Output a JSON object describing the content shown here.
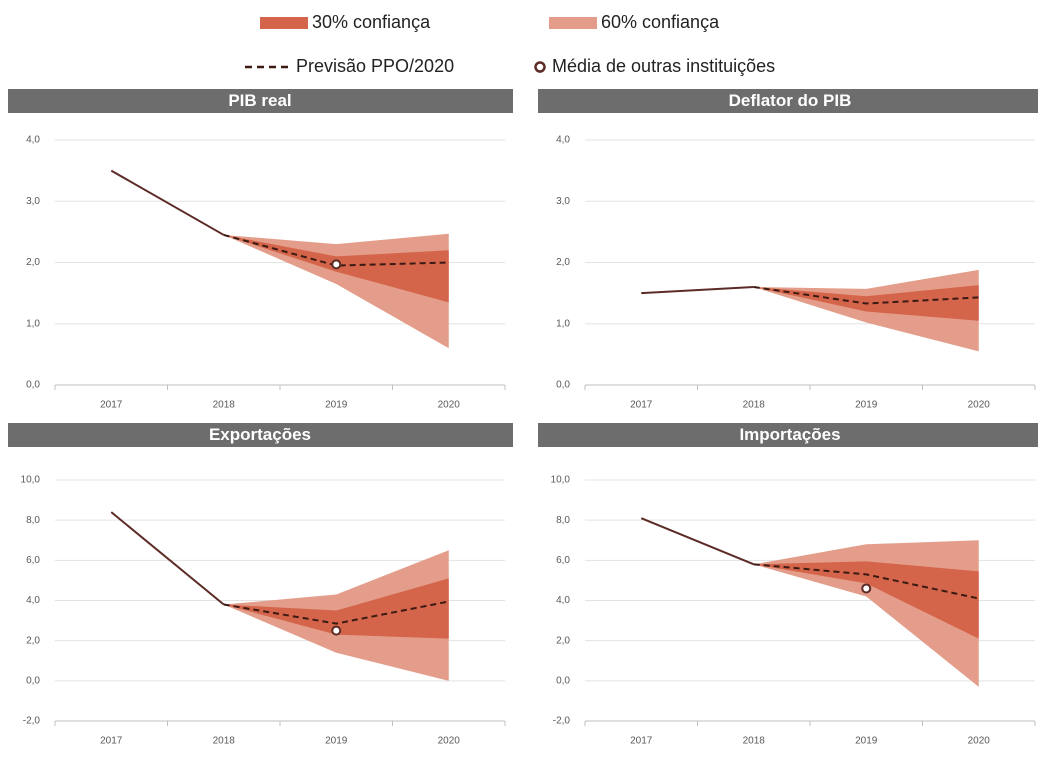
{
  "legend": [
    {
      "label": "30% confiança",
      "kind": "band",
      "color": "#d4654a"
    },
    {
      "label": "60% confiança",
      "kind": "band",
      "color": "#e39d8a"
    },
    {
      "label": "Previsão PPO/2020",
      "kind": "dashed",
      "color": "#3b1a14"
    },
    {
      "label": "Média de outras instituições",
      "kind": "marker",
      "color": "#5c2b26"
    }
  ],
  "history_color": "#5c2b26",
  "chart_data": [
    {
      "type": "fan",
      "title": "PIB real",
      "categories": [
        "2017",
        "2018",
        "2019",
        "2020"
      ],
      "history": [
        3.5,
        2.45,
        null,
        null
      ],
      "forecast": [
        null,
        2.45,
        1.95,
        2.0
      ],
      "band_30": {
        "low": [
          null,
          2.45,
          1.85,
          1.35
        ],
        "high": [
          null,
          2.45,
          2.1,
          2.2
        ]
      },
      "band_60": {
        "low": [
          null,
          2.45,
          1.65,
          0.6
        ],
        "high": [
          null,
          2.45,
          2.3,
          2.47
        ]
      },
      "media": [
        null,
        null,
        1.97,
        null
      ],
      "ylim": [
        0,
        4
      ],
      "yticks": [
        {
          "value": 0,
          "label": "0,0"
        },
        {
          "value": 1,
          "label": "1,0"
        },
        {
          "value": 2,
          "label": "2,0"
        },
        {
          "value": 3,
          "label": "3,0"
        },
        {
          "value": 4,
          "label": "4,0"
        }
      ],
      "grid": true
    },
    {
      "type": "fan",
      "title": "Deflator do PIB",
      "categories": [
        "2017",
        "2018",
        "2019",
        "2020"
      ],
      "history": [
        1.5,
        1.6,
        null,
        null
      ],
      "forecast": [
        null,
        1.6,
        1.33,
        1.43
      ],
      "band_30": {
        "low": [
          null,
          1.6,
          1.2,
          1.05
        ],
        "high": [
          null,
          1.6,
          1.45,
          1.63
        ]
      },
      "band_60": {
        "low": [
          null,
          1.6,
          1.02,
          0.55
        ],
        "high": [
          null,
          1.6,
          1.57,
          1.88
        ]
      },
      "media": [
        null,
        null,
        null,
        null
      ],
      "ylim": [
        0,
        4
      ],
      "yticks": [
        {
          "value": 0,
          "label": "0,0"
        },
        {
          "value": 1,
          "label": "1,0"
        },
        {
          "value": 2,
          "label": "2,0"
        },
        {
          "value": 3,
          "label": "3,0"
        },
        {
          "value": 4,
          "label": "4,0"
        }
      ],
      "grid": true
    },
    {
      "type": "fan",
      "title": "Exportações",
      "categories": [
        "2017",
        "2018",
        "2019",
        "2020"
      ],
      "history": [
        8.4,
        3.8,
        null,
        null
      ],
      "forecast": [
        null,
        3.8,
        2.85,
        3.95
      ],
      "band_30": {
        "low": [
          null,
          3.8,
          2.3,
          2.1
        ],
        "high": [
          null,
          3.8,
          3.5,
          5.1
        ]
      },
      "band_60": {
        "low": [
          null,
          3.8,
          1.4,
          0
        ],
        "high": [
          null,
          3.8,
          4.3,
          6.5
        ]
      },
      "media": [
        null,
        null,
        2.5,
        null
      ],
      "ylim": [
        -2,
        10
      ],
      "yticks": [
        {
          "value": -2,
          "label": "-2,0"
        },
        {
          "value": 0,
          "label": "0,0"
        },
        {
          "value": 2,
          "label": "2,0"
        },
        {
          "value": 4,
          "label": "4,0"
        },
        {
          "value": 6,
          "label": "6,0"
        },
        {
          "value": 8,
          "label": "8,0"
        },
        {
          "value": 10,
          "label": "10,0"
        }
      ],
      "grid": true
    },
    {
      "type": "fan",
      "title": "Importações",
      "categories": [
        "2017",
        "2018",
        "2019",
        "2020"
      ],
      "history": [
        8.1,
        5.8,
        null,
        null
      ],
      "forecast": [
        null,
        5.8,
        5.3,
        4.1
      ],
      "band_30": {
        "low": [
          null,
          5.8,
          4.85,
          2.1
        ],
        "high": [
          null,
          5.8,
          5.95,
          5.45
        ]
      },
      "band_60": {
        "low": [
          null,
          5.8,
          4.2,
          -0.3
        ],
        "high": [
          null,
          5.8,
          6.8,
          7.0
        ]
      },
      "media": [
        null,
        null,
        4.6,
        null
      ],
      "ylim": [
        -2,
        10
      ],
      "yticks": [
        {
          "value": -2,
          "label": "-2,0"
        },
        {
          "value": 0,
          "label": "0,0"
        },
        {
          "value": 2,
          "label": "2,0"
        },
        {
          "value": 4,
          "label": "4,0"
        },
        {
          "value": 6,
          "label": "6,0"
        },
        {
          "value": 8,
          "label": "8,0"
        },
        {
          "value": 10,
          "label": "10,0"
        }
      ],
      "grid": true
    }
  ]
}
